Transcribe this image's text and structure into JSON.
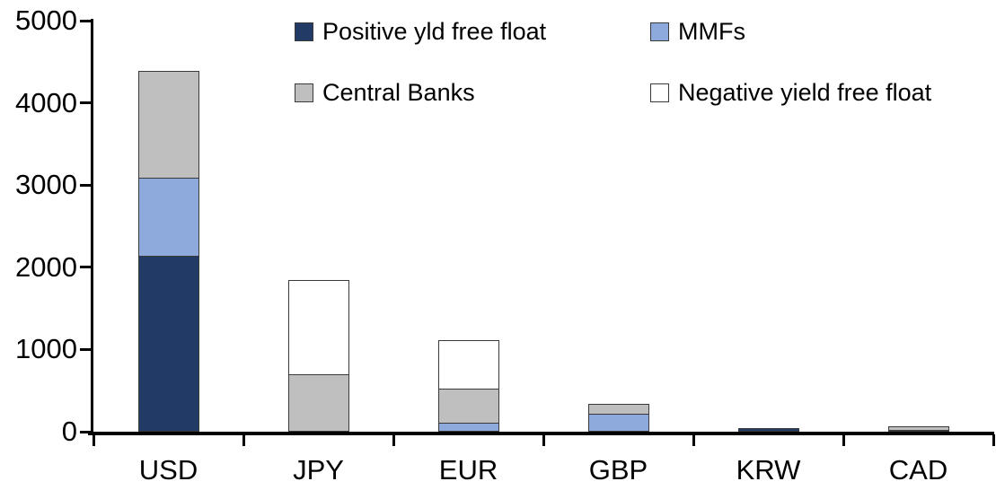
{
  "chart_data": {
    "type": "bar",
    "stacked": true,
    "categories": [
      "USD",
      "JPY",
      "EUR",
      "GBP",
      "KRW",
      "CAD"
    ],
    "series": [
      {
        "name": "Positive yld free float",
        "color": "#213a66",
        "values": [
          2150,
          0,
          0,
          0,
          45,
          30
        ]
      },
      {
        "name": "MMFs",
        "color": "#8ea9dc",
        "values": [
          950,
          0,
          110,
          220,
          0,
          0
        ]
      },
      {
        "name": "Central Banks",
        "color": "#bfbfbf",
        "values": [
          1290,
          700,
          425,
          115,
          0,
          35
        ]
      },
      {
        "name": "Negative yield free float",
        "color": "#ffffff",
        "values": [
          0,
          1150,
          575,
          0,
          0,
          0
        ]
      }
    ],
    "totals": [
      4390,
      1850,
      1110,
      335,
      45,
      65
    ],
    "ylim": [
      0,
      5000
    ],
    "yticks": [
      "0",
      "1000",
      "2000",
      "3000",
      "4000",
      "5000"
    ],
    "xlabel": "",
    "ylabel": "",
    "title": "",
    "legend_position": "top",
    "grid": false,
    "colors": {
      "axis": "#000000",
      "segment_border": "#3a3a3a",
      "background": "#ffffff",
      "text": "#000000"
    }
  }
}
